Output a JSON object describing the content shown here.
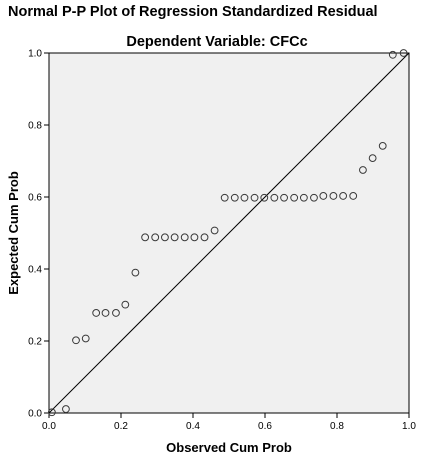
{
  "chart_data": {
    "type": "scatter",
    "title": "Normal P-P Plot of Regression Standardized Residual",
    "subtitle": "Dependent Variable: CFCc",
    "xlabel": "Observed Cum Prob",
    "ylabel": "Expected Cum Prob",
    "xlim": [
      0,
      1
    ],
    "ylim": [
      0,
      1
    ],
    "xticks": [
      "0.0",
      "0.2",
      "0.4",
      "0.6",
      "0.8",
      "1.0"
    ],
    "yticks": [
      "0.0",
      "0.2",
      "0.4",
      "0.6",
      "0.8",
      "1.0"
    ],
    "reference_line": [
      [
        0,
        0
      ],
      [
        1,
        1
      ]
    ],
    "grid": false,
    "plot_background": "#f0f0f0",
    "marker": "open-circle",
    "points": [
      [
        0.008,
        0.002
      ],
      [
        0.047,
        0.011
      ],
      [
        0.075,
        0.202
      ],
      [
        0.102,
        0.207
      ],
      [
        0.131,
        0.278
      ],
      [
        0.157,
        0.278
      ],
      [
        0.186,
        0.278
      ],
      [
        0.212,
        0.301
      ],
      [
        0.24,
        0.39
      ],
      [
        0.267,
        0.488
      ],
      [
        0.295,
        0.488
      ],
      [
        0.322,
        0.488
      ],
      [
        0.349,
        0.488
      ],
      [
        0.377,
        0.488
      ],
      [
        0.404,
        0.488
      ],
      [
        0.432,
        0.488
      ],
      [
        0.46,
        0.507
      ],
      [
        0.488,
        0.598
      ],
      [
        0.516,
        0.598
      ],
      [
        0.543,
        0.598
      ],
      [
        0.571,
        0.598
      ],
      [
        0.598,
        0.598
      ],
      [
        0.626,
        0.598
      ],
      [
        0.653,
        0.598
      ],
      [
        0.681,
        0.598
      ],
      [
        0.708,
        0.598
      ],
      [
        0.736,
        0.598
      ],
      [
        0.762,
        0.603
      ],
      [
        0.79,
        0.603
      ],
      [
        0.817,
        0.603
      ],
      [
        0.845,
        0.603
      ],
      [
        0.872,
        0.675
      ],
      [
        0.899,
        0.708
      ],
      [
        0.927,
        0.742
      ],
      [
        0.955,
        0.995
      ],
      [
        0.985,
        1.0
      ]
    ]
  }
}
